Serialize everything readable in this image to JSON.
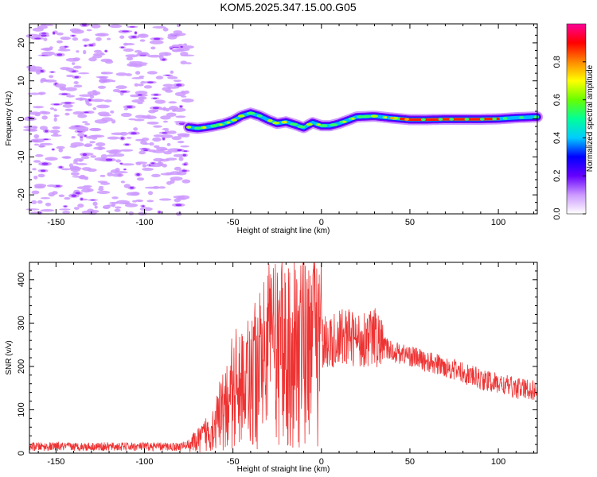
{
  "title": "KOM5.2025.347.15.00.G05",
  "chart_data": [
    {
      "type": "heatmap",
      "xlabel": "Height of straight line (km)",
      "ylabel": "Frequency (Hz)",
      "xlim": [
        -165,
        122
      ],
      "ylim": [
        -25,
        25
      ],
      "xticks": [
        "-150",
        "-100",
        "-50",
        "0",
        "50",
        "100"
      ],
      "yticks": [
        "20",
        "10",
        "0",
        "-10",
        "-20"
      ],
      "ridge": {
        "x": [
          -75,
          -70,
          -65,
          -60,
          -55,
          -50,
          -45,
          -40,
          -35,
          -30,
          -25,
          -20,
          -15,
          -10,
          -5,
          0,
          5,
          10,
          20,
          30,
          40,
          50,
          60,
          70,
          80,
          90,
          100,
          110,
          122
        ],
        "y": [
          -2.2,
          -2.5,
          -2.2,
          -1.8,
          -1.3,
          -0.5,
          0.8,
          1.5,
          0.8,
          -0.3,
          -1.2,
          -0.8,
          -1.5,
          -2.3,
          -1.0,
          -1.8,
          -1.8,
          -1.2,
          0.5,
          0.7,
          0.2,
          -0.2,
          -0.2,
          -0.1,
          -0.1,
          -0.1,
          0.0,
          0.3,
          0.5
        ]
      },
      "noise_region_x": [
        -165,
        -75
      ],
      "colorbar": {
        "label": "Normalized spectral amplitude",
        "range": [
          0,
          1
        ],
        "ticks": [
          "0.0",
          "0.2",
          "0.4",
          "0.6",
          "0.8"
        ],
        "colors": [
          "#ffffff",
          "#cc99ff",
          "#6600ff",
          "#0000ff",
          "#00ccff",
          "#00ff99",
          "#66ff00",
          "#ffff00",
          "#ff8800",
          "#ff0000",
          "#ff0099"
        ]
      }
    },
    {
      "type": "line",
      "xlabel": "Height of straight line (km)",
      "ylabel": "SNR (v/v)",
      "xlim": [
        -165,
        122
      ],
      "ylim": [
        0,
        440
      ],
      "xticks": [
        "-150",
        "-100",
        "-50",
        "0",
        "50",
        "100"
      ],
      "yticks": [
        "0",
        "100",
        "200",
        "300",
        "400"
      ],
      "color": "#ee3333",
      "trend": {
        "x": [
          -165,
          -140,
          -100,
          -80,
          -75,
          -70,
          -65,
          -60,
          -55,
          -50,
          -45,
          -40,
          -35,
          -30,
          -25,
          -20,
          -15,
          -10,
          -5,
          -2,
          0,
          5,
          10,
          15,
          20,
          25,
          30,
          35,
          40,
          50,
          60,
          70,
          80,
          90,
          100,
          110,
          122
        ],
        "y": [
          15,
          15,
          15,
          15,
          20,
          28,
          45,
          70,
          100,
          130,
          150,
          170,
          190,
          215,
          230,
          225,
          260,
          250,
          290,
          250,
          260,
          250,
          265,
          270,
          260,
          265,
          270,
          245,
          235,
          225,
          210,
          200,
          185,
          170,
          160,
          150,
          145
        ]
      }
    }
  ]
}
